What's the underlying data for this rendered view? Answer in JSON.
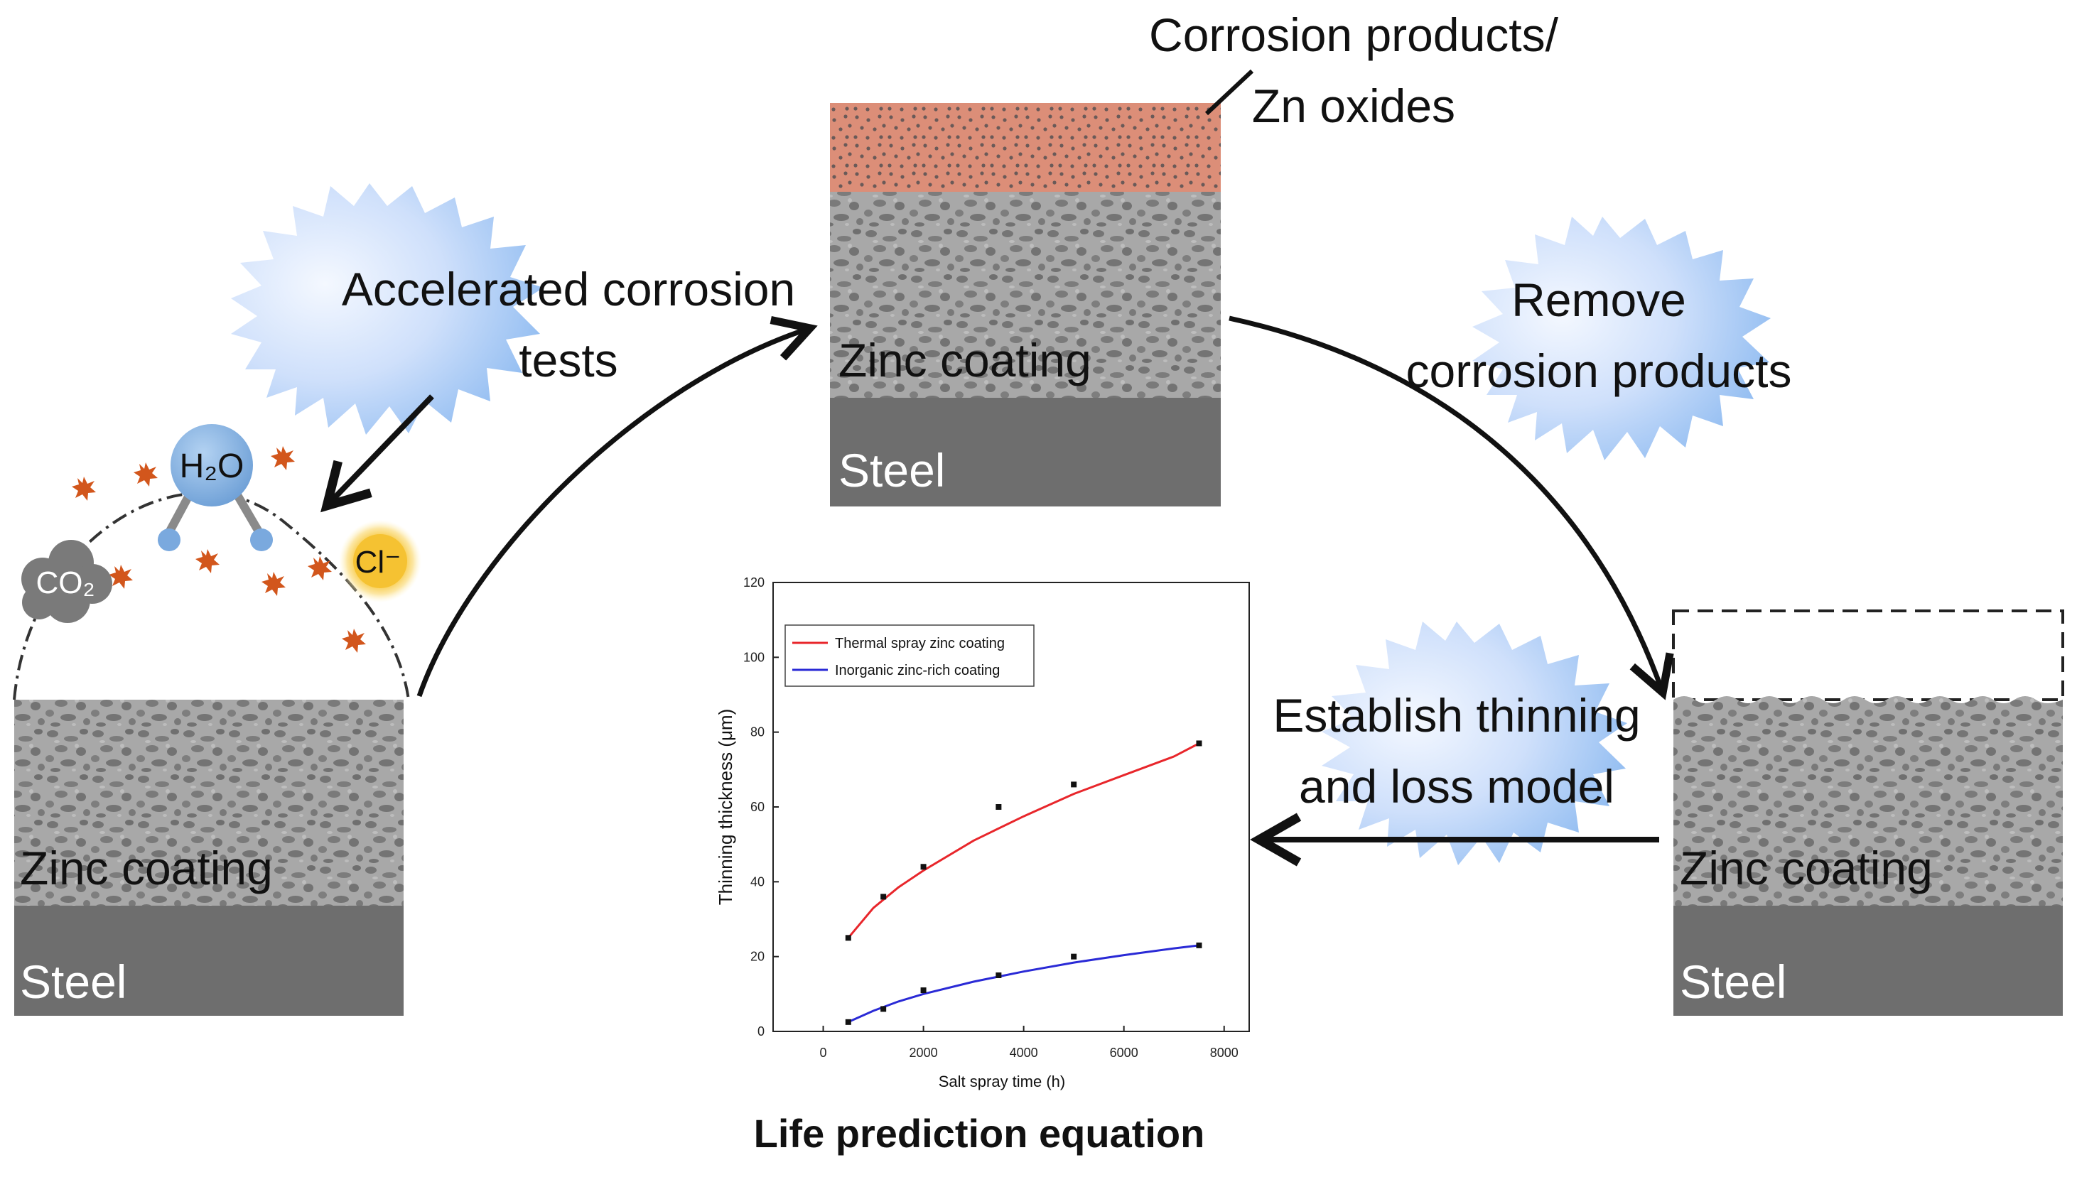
{
  "labels": {
    "corrosion_products_line1": "Corrosion products/",
    "corrosion_products_line2": "Zn oxides",
    "accelerated_line1": "Accelerated corrosion",
    "accelerated_line2": "tests",
    "remove_line1": "Remove",
    "remove_line2": "corrosion products",
    "establish_line1": "Establish thinning",
    "establish_line2": "and loss model",
    "zinc_coating": "Zinc coating",
    "steel": "Steel",
    "h2o": "H₂O",
    "co2": "CO₂",
    "cl": "Cl⁻",
    "life_prediction": "Life  prediction  equation"
  },
  "colors": {
    "cloud_light": "#f0f6ff",
    "cloud_blue": "#7fb2ee",
    "corrosion_layer": "#dc8e78",
    "zinc_light": "#a9a9a9",
    "zinc_dark": "#707070",
    "steel": "#6e6e6e",
    "particle": "#d2561c",
    "h2o_molecule": "#8ab6e4",
    "cl_ion": "#f5c232",
    "co2_cloud": "#7a7a7a",
    "thermal_series": "#e8262b",
    "inorganic_series": "#2a2ad6"
  },
  "chart_data": {
    "type": "line",
    "xlabel": "Salt spray time (h)",
    "ylabel": "Thinning thickness (μm)",
    "xlim": [
      -1000,
      8500
    ],
    "ylim": [
      0,
      120
    ],
    "xticks": [
      0,
      2000,
      4000,
      6000,
      8000
    ],
    "yticks": [
      0,
      20,
      40,
      60,
      80,
      100,
      120
    ],
    "legend_position": "top-left",
    "series": [
      {
        "name": "Thermal spray zinc coating",
        "color": "#e8262b",
        "points": [
          [
            500,
            25
          ],
          [
            1200,
            36
          ],
          [
            2000,
            44
          ],
          [
            3500,
            60
          ],
          [
            5000,
            66
          ],
          [
            7500,
            77
          ]
        ],
        "fit": [
          [
            500,
            25
          ],
          [
            1000,
            33
          ],
          [
            1500,
            38.5
          ],
          [
            2000,
            43
          ],
          [
            3000,
            51
          ],
          [
            4000,
            57.5
          ],
          [
            5000,
            63.5
          ],
          [
            6000,
            68.5
          ],
          [
            7000,
            73.5
          ],
          [
            7500,
            77
          ]
        ]
      },
      {
        "name": "Inorganic zinc-rich coating",
        "color": "#2a2ad6",
        "points": [
          [
            500,
            2.5
          ],
          [
            1200,
            6
          ],
          [
            2000,
            11
          ],
          [
            3500,
            15
          ],
          [
            5000,
            20
          ],
          [
            7500,
            23
          ]
        ],
        "fit": [
          [
            500,
            2.5
          ],
          [
            1000,
            5.5
          ],
          [
            1500,
            8
          ],
          [
            2000,
            10
          ],
          [
            3000,
            13.3
          ],
          [
            4000,
            16
          ],
          [
            5000,
            18.4
          ],
          [
            6000,
            20.4
          ],
          [
            7000,
            22.2
          ],
          [
            7500,
            23
          ]
        ]
      }
    ]
  }
}
